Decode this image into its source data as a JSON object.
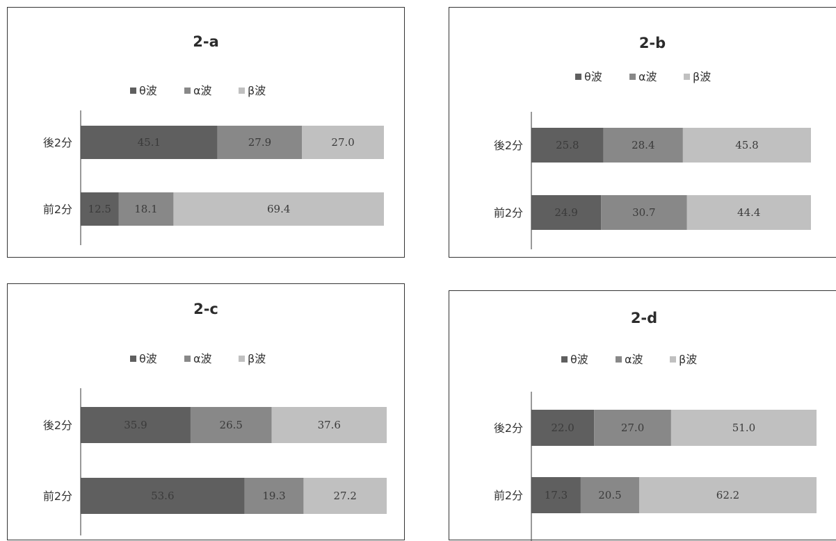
{
  "colors": {
    "theta": "#5f5f5f",
    "alpha": "#888888",
    "beta": "#c0c0c0",
    "axis": "#555555"
  },
  "chart_data": [
    {
      "type": "bar",
      "orientation": "horizontal",
      "stacked": true,
      "title": "2-a",
      "legend": "top",
      "categories": [
        "後2分",
        "前2分"
      ],
      "series": [
        {
          "name": "θ波",
          "values": [
            45.1,
            12.5
          ]
        },
        {
          "name": "α波",
          "values": [
            27.9,
            18.1
          ]
        },
        {
          "name": "β波",
          "values": [
            27.0,
            69.4
          ]
        }
      ],
      "labels": [
        [
          "45.1",
          "12.5"
        ],
        [
          "27.9",
          "18.1"
        ],
        [
          "27.0",
          "69.4"
        ]
      ]
    },
    {
      "type": "bar",
      "orientation": "horizontal",
      "stacked": true,
      "title": "2-b",
      "legend": "top",
      "categories": [
        "後2分",
        "前2分"
      ],
      "series": [
        {
          "name": "θ波",
          "values": [
            25.8,
            24.9
          ]
        },
        {
          "name": "α波",
          "values": [
            28.4,
            30.7
          ]
        },
        {
          "name": "β波",
          "values": [
            45.8,
            44.4
          ]
        }
      ],
      "labels": [
        [
          "25.8",
          "24.9"
        ],
        [
          "28.4",
          "30.7"
        ],
        [
          "45.8",
          "44.4"
        ]
      ]
    },
    {
      "type": "bar",
      "orientation": "horizontal",
      "stacked": true,
      "title": "2-c",
      "legend": "top",
      "categories": [
        "後2分",
        "前2分"
      ],
      "series": [
        {
          "name": "θ波",
          "values": [
            35.9,
            53.6
          ]
        },
        {
          "name": "α波",
          "values": [
            26.5,
            19.3
          ]
        },
        {
          "name": "β波",
          "values": [
            37.6,
            27.2
          ]
        }
      ],
      "labels": [
        [
          "35.9",
          "53.6"
        ],
        [
          "26.5",
          "19.3"
        ],
        [
          "37.6",
          "27.2"
        ]
      ]
    },
    {
      "type": "bar",
      "orientation": "horizontal",
      "stacked": true,
      "title": "2-d",
      "legend": "top",
      "categories": [
        "後2分",
        "前2分"
      ],
      "series": [
        {
          "name": "θ波",
          "values": [
            22.0,
            17.3
          ]
        },
        {
          "name": "α波",
          "values": [
            27.0,
            20.5
          ]
        },
        {
          "name": "β波",
          "values": [
            51.0,
            62.2
          ]
        }
      ],
      "labels": [
        [
          "22.0",
          "17.3"
        ],
        [
          "27.0",
          "20.5"
        ],
        [
          "51.0",
          "62.2"
        ]
      ]
    }
  ]
}
